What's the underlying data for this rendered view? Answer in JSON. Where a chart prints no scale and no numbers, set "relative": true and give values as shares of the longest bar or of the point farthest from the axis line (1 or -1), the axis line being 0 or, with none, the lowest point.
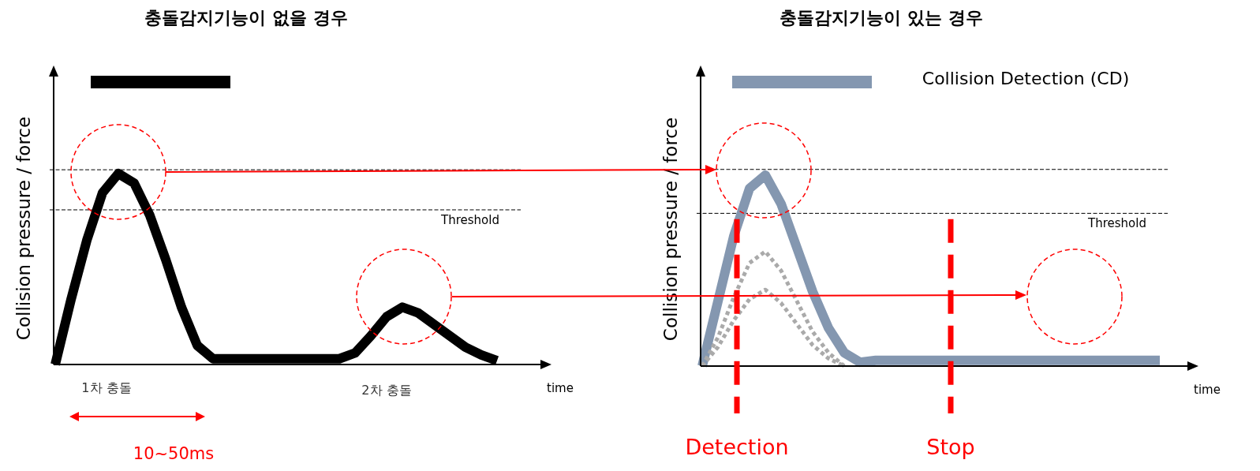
{
  "chart_data": [
    {
      "type": "line",
      "title": "충돌감지기능이 없을 경우",
      "xlabel": "time",
      "ylabel": "Collision pressure / force",
      "relative": true,
      "marker": "none",
      "line_style": "solid",
      "legend": false,
      "categories": [
        null,
        null,
        null,
        null,
        null,
        null,
        null,
        null,
        null,
        null,
        null,
        null,
        null,
        null,
        null,
        null,
        null,
        null,
        null,
        null,
        null,
        null,
        null,
        null,
        null,
        null,
        null,
        null,
        null
      ],
      "series": [
        {
          "color": "#000000",
          "values": [
            0,
            0.34,
            0.65,
            0.9,
            1.0,
            0.95,
            0.78,
            0.55,
            0.3,
            0.1,
            0.03,
            0.03,
            0.03,
            0.03,
            0.03,
            0.03,
            0.03,
            0.03,
            0.03,
            0.06,
            0.15,
            0.25,
            0.3,
            0.27,
            0.21,
            0.15,
            0.09,
            0.05,
            0.02
          ]
        }
      ],
      "ref_lines": [
        {
          "axis": "y",
          "value": 1.02,
          "label": null,
          "color": "#000000",
          "line_style": "dashed"
        },
        {
          "axis": "y",
          "value": 0.81,
          "label": "Threshold",
          "color": "#000000",
          "line_style": "dashed"
        }
      ],
      "annotations": [
        "1차 충돌",
        "2차 충돌",
        "10~50ms"
      ]
    },
    {
      "type": "line",
      "title": "충돌감지기능이 있는 경우",
      "xlabel": "time",
      "ylabel": "Collision pressure / force",
      "relative": true,
      "marker": "none",
      "line_style": "solid",
      "legend": false,
      "categories": [
        null,
        null,
        null,
        null,
        null,
        null,
        null,
        null,
        null,
        null,
        null,
        null,
        null,
        null,
        null,
        null,
        null,
        null,
        null,
        null,
        null,
        null,
        null,
        null,
        null,
        null,
        null,
        null,
        null,
        null
      ],
      "series": [
        {
          "color": "#8497b0",
          "values": [
            0,
            0.34,
            0.68,
            0.93,
            1.0,
            0.85,
            0.62,
            0.39,
            0.2,
            0.07,
            0.02,
            0.03,
            0.03,
            0.03,
            0.03,
            0.03,
            0.03,
            0.03,
            0.03,
            0.03,
            0.03,
            0.03,
            0.03,
            0.03,
            0.03,
            0.03,
            0.03,
            0.03,
            0.03,
            0.03
          ]
        },
        {
          "color": "#aaaaaa",
          "line_style": "dotted",
          "values": [
            0,
            0.15,
            0.36,
            0.54,
            0.6,
            0.5,
            0.34,
            0.18,
            0.07,
            0,
            null,
            null,
            null,
            null,
            null,
            null,
            null,
            null,
            null,
            null,
            null,
            null,
            null,
            null,
            null,
            null,
            null,
            null,
            null,
            null
          ]
        },
        {
          "color": "#aaaaaa",
          "line_style": "dotted",
          "values": [
            0,
            0.1,
            0.24,
            0.35,
            0.4,
            0.33,
            0.22,
            0.11,
            0.04,
            0,
            null,
            null,
            null,
            null,
            null,
            null,
            null,
            null,
            null,
            null,
            null,
            null,
            null,
            null,
            null,
            null,
            null,
            null,
            null,
            null
          ]
        }
      ],
      "ref_lines": [
        {
          "axis": "y",
          "value": 1.03,
          "label": null,
          "color": "#000000",
          "line_style": "dashed"
        },
        {
          "axis": "y",
          "value": 0.8,
          "label": "Threshold",
          "color": "#000000",
          "line_style": "dashed"
        }
      ],
      "annotations": [
        "Collision Detection (CD)",
        "Detection",
        "Stop"
      ]
    }
  ]
}
